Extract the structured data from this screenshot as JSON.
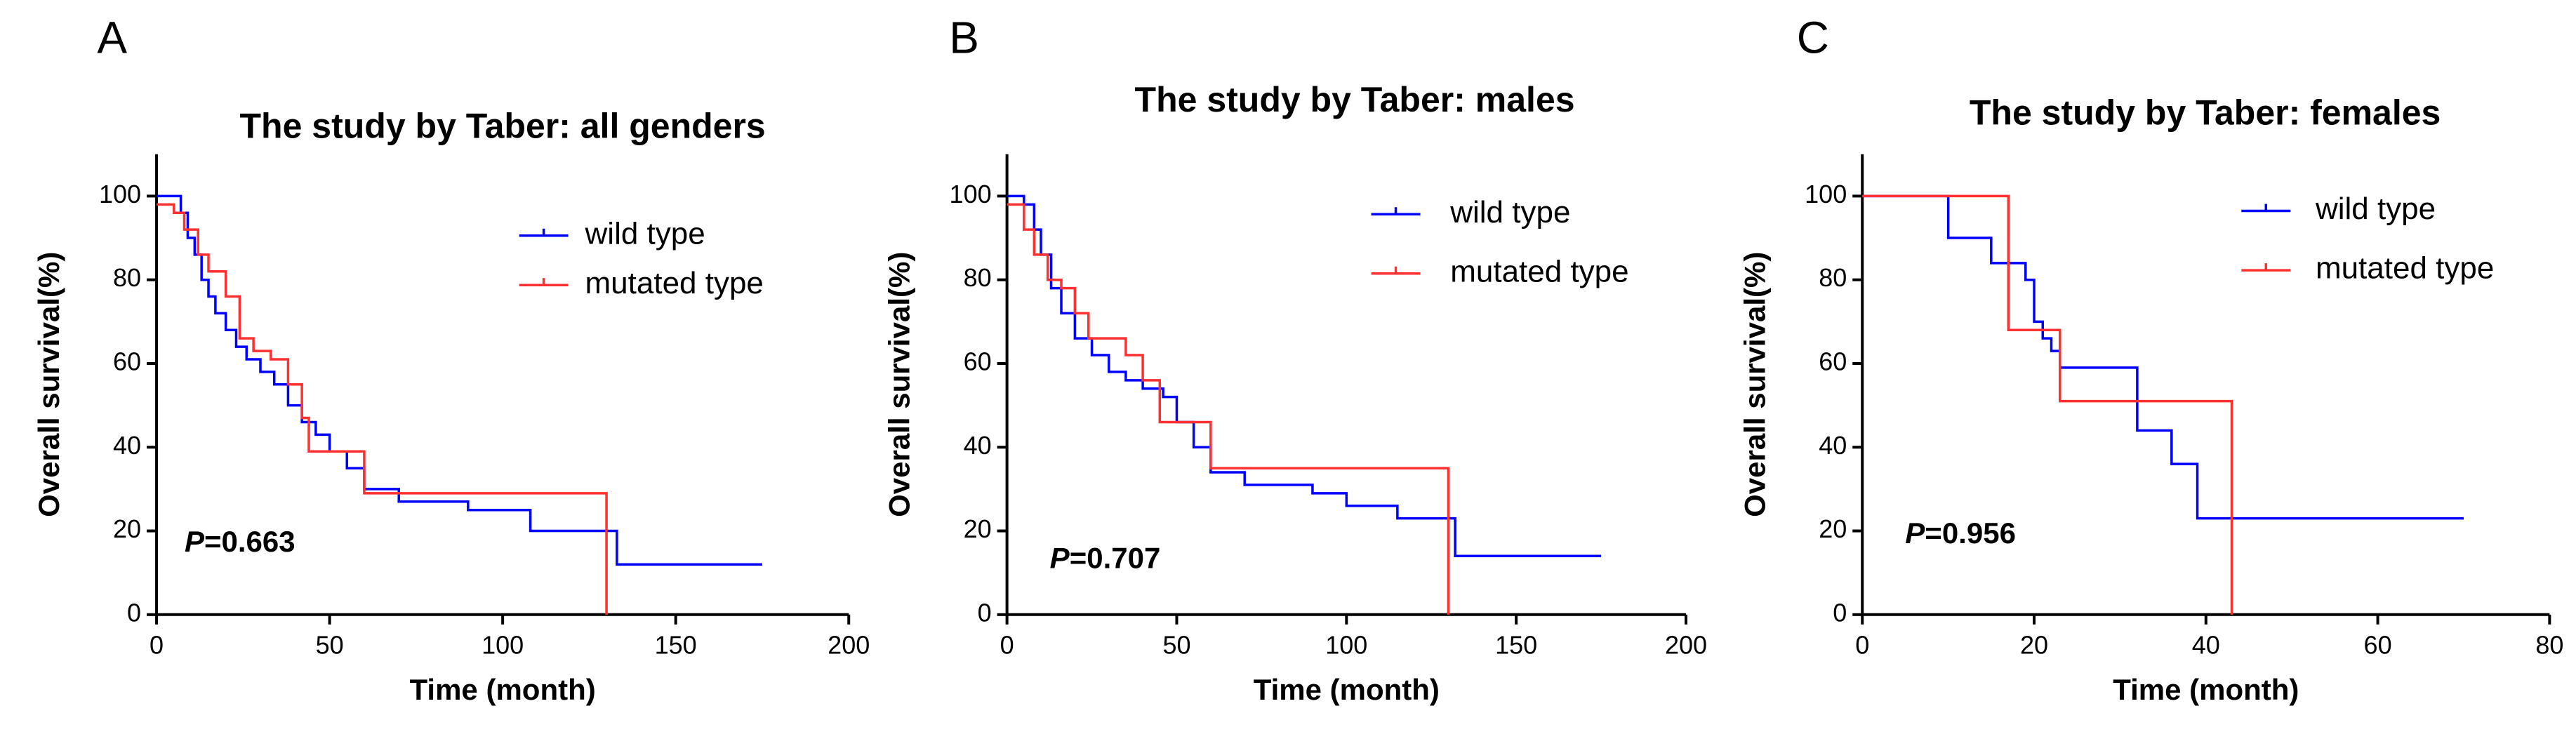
{
  "chart_data": [
    {
      "type": "line",
      "panel_label": "A",
      "title": "The study by Taber: all genders",
      "xlabel": "Time (month)",
      "ylabel": "Overall survival(%)",
      "annotation": [
        "P",
        "=0.663"
      ],
      "xlim": [
        0,
        200
      ],
      "xticks": [
        0,
        50,
        100,
        150,
        200
      ],
      "ylim": [
        0,
        110
      ],
      "yticks": [
        0,
        20,
        40,
        60,
        80,
        100
      ],
      "series": [
        {
          "name": "wild type",
          "color": "#0000ff",
          "x": [
            0,
            5,
            7,
            9,
            11,
            13,
            15,
            17,
            20,
            23,
            26,
            30,
            34,
            38,
            42,
            46,
            50,
            55,
            60,
            70,
            90,
            108,
            120,
            133,
            175
          ],
          "values": [
            100,
            100,
            96,
            90,
            86,
            80,
            76,
            72,
            68,
            64,
            61,
            58,
            55,
            50,
            46,
            43,
            39,
            35,
            30,
            27,
            25,
            20,
            20,
            12,
            12
          ]
        },
        {
          "name": "mutated type",
          "color": "#ff3030",
          "x": [
            0,
            5,
            8,
            12,
            15,
            20,
            24,
            28,
            33,
            38,
            42,
            44,
            55,
            60,
            85,
            130,
            130
          ],
          "values": [
            98,
            96,
            92,
            86,
            82,
            76,
            66,
            63,
            61,
            55,
            47,
            39,
            39,
            29,
            29,
            29,
            0
          ]
        }
      ]
    },
    {
      "type": "line",
      "panel_label": "B",
      "title": "The study by Taber: males",
      "xlabel": "Time (month)",
      "ylabel": "Overall survival(%)",
      "annotation": [
        "P",
        "=0.707"
      ],
      "xlim": [
        0,
        200
      ],
      "xticks": [
        0,
        50,
        100,
        150,
        200
      ],
      "ylim": [
        0,
        110
      ],
      "yticks": [
        0,
        20,
        40,
        60,
        80,
        100
      ],
      "series": [
        {
          "name": "wild type",
          "color": "#0000ff",
          "x": [
            0,
            5,
            8,
            10,
            13,
            16,
            20,
            25,
            30,
            35,
            40,
            46,
            50,
            55,
            60,
            70,
            90,
            100,
            115,
            132,
            175
          ],
          "values": [
            100,
            98,
            92,
            86,
            78,
            72,
            66,
            62,
            58,
            56,
            54,
            52,
            46,
            40,
            34,
            31,
            29,
            26,
            23,
            14,
            14
          ]
        },
        {
          "name": "mutated type",
          "color": "#ff3030",
          "x": [
            0,
            5,
            8,
            12,
            16,
            20,
            24,
            35,
            40,
            45,
            58,
            60,
            130,
            130
          ],
          "values": [
            98,
            92,
            86,
            80,
            78,
            72,
            66,
            62,
            56,
            46,
            46,
            35,
            35,
            0
          ]
        }
      ]
    },
    {
      "type": "line",
      "panel_label": "C",
      "title": "The study by Taber: females",
      "xlabel": "Time (month)",
      "ylabel": "Overall survival(%)",
      "annotation": [
        "P",
        "=0.956"
      ],
      "xlim": [
        0,
        80
      ],
      "xticks": [
        0,
        20,
        40,
        60,
        80
      ],
      "ylim": [
        0,
        110
      ],
      "yticks": [
        0,
        20,
        40,
        60,
        80,
        100
      ],
      "series": [
        {
          "name": "wild type",
          "color": "#0000ff",
          "x": [
            0,
            8,
            10,
            15,
            19,
            20,
            21,
            22,
            23,
            31,
            32,
            34,
            36,
            39,
            70
          ],
          "values": [
            100,
            100,
            90,
            84,
            80,
            70,
            66,
            63,
            59,
            59,
            44,
            44,
            36,
            23,
            23
          ]
        },
        {
          "name": "mutated type",
          "color": "#ff3030",
          "x": [
            0,
            15,
            17,
            23,
            43,
            43
          ],
          "values": [
            100,
            100,
            68,
            51,
            51,
            0
          ]
        }
      ]
    }
  ]
}
